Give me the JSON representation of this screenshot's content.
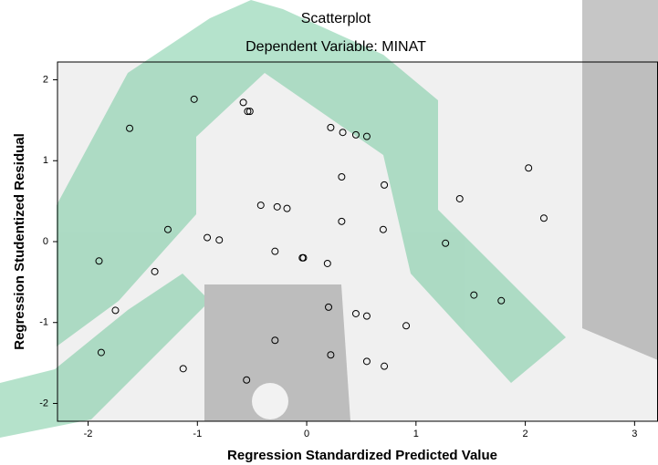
{
  "chart_data": {
    "type": "scatter",
    "title": "Scatterplot",
    "subtitle": "Dependent Variable: MINAT",
    "x_label": "Regression Standardized Predicted Value",
    "y_label": "Regression Studentized Residual",
    "x": [
      -1.62,
      -1.03,
      -0.58,
      -0.54,
      -0.52,
      0.22,
      0.33,
      0.45,
      0.55,
      2.03,
      0.32,
      0.71,
      1.4,
      -0.42,
      -0.27,
      -0.18,
      2.17,
      0.32,
      -1.27,
      0.7,
      -0.91,
      -0.8,
      1.27,
      -0.29,
      -0.04,
      -0.03,
      -1.9,
      0.19,
      -1.39,
      1.53,
      1.78,
      -1.75,
      0.2,
      0.45,
      0.55,
      0.91,
      -0.29,
      -1.88,
      0.22,
      0.55,
      0.71,
      -1.13,
      -0.55
    ],
    "y": [
      1.4,
      1.76,
      1.72,
      1.61,
      1.61,
      1.41,
      1.35,
      1.32,
      1.3,
      0.91,
      0.8,
      0.7,
      0.53,
      0.45,
      0.43,
      0.41,
      0.29,
      0.25,
      0.15,
      0.15,
      0.05,
      0.02,
      -0.02,
      -0.12,
      -0.2,
      -0.2,
      -0.24,
      -0.27,
      -0.37,
      -0.66,
      -0.73,
      -0.85,
      -0.81,
      -0.89,
      -0.92,
      -1.04,
      -1.22,
      -1.37,
      -1.4,
      -1.48,
      -1.54,
      -1.57,
      -1.71
    ],
    "marker_color": "#000000",
    "plot_background": "#f0f0f0",
    "xlim": [
      -2.28,
      3.21
    ],
    "ylim": [
      -2.22,
      2.22
    ],
    "xticks": [
      -2,
      -1,
      0,
      1,
      2,
      3
    ],
    "yticks": [
      -2,
      -1,
      0,
      1,
      2
    ]
  }
}
